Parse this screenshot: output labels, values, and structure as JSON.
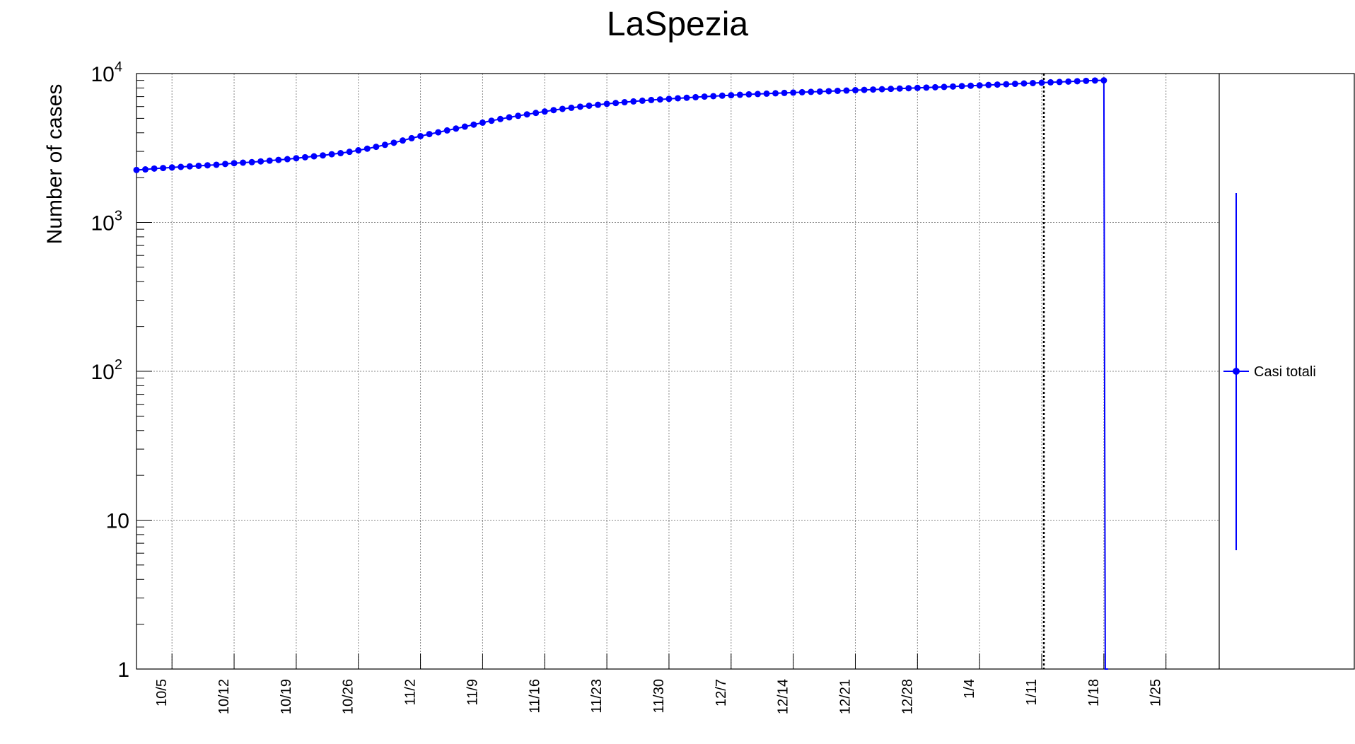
{
  "chart_data": {
    "type": "line",
    "title": "LaSpezia",
    "xlabel": "",
    "ylabel": "Number of cases",
    "y_scale": "log",
    "ylim": [
      1,
      10000
    ],
    "xlim": [
      "2020-10-01",
      "2021-01-31"
    ],
    "grid": true,
    "x_ticks": [
      "10/5",
      "10/12",
      "10/19",
      "10/26",
      "11/2",
      "11/9",
      "11/16",
      "11/23",
      "11/30",
      "12/7",
      "12/14",
      "12/21",
      "12/28",
      "1/4",
      "1/11",
      "1/18",
      "1/25"
    ],
    "y_ticks": [
      {
        "value": 1,
        "base": "1",
        "exp": ""
      },
      {
        "value": 10,
        "base": "10",
        "exp": ""
      },
      {
        "value": 100,
        "base": "10",
        "exp": "2"
      },
      {
        "value": 1000,
        "base": "10",
        "exp": "3"
      },
      {
        "value": 10000,
        "base": "10",
        "exp": "4"
      }
    ],
    "vertical_marker": "2021-01-11",
    "legend": {
      "placement": "right",
      "entries": [
        "Casi totali"
      ]
    },
    "colors": {
      "series": "#0000ff"
    },
    "series": [
      {
        "name": "Casi totali",
        "start_date": "2020-10-01",
        "values": [
          2250,
          2270,
          2300,
          2320,
          2340,
          2360,
          2380,
          2400,
          2420,
          2440,
          2470,
          2500,
          2520,
          2540,
          2570,
          2600,
          2630,
          2660,
          2700,
          2740,
          2780,
          2820,
          2870,
          2920,
          2980,
          3050,
          3130,
          3220,
          3320,
          3430,
          3550,
          3680,
          3800,
          3920,
          4030,
          4150,
          4270,
          4400,
          4540,
          4680,
          4820,
          4950,
          5080,
          5200,
          5320,
          5440,
          5560,
          5680,
          5790,
          5890,
          5990,
          6080,
          6170,
          6260,
          6340,
          6420,
          6500,
          6570,
          6640,
          6700,
          6760,
          6820,
          6880,
          6940,
          7000,
          7050,
          7100,
          7150,
          7200,
          7250,
          7290,
          7330,
          7370,
          7410,
          7450,
          7490,
          7530,
          7570,
          7610,
          7650,
          7690,
          7730,
          7770,
          7810,
          7850,
          7890,
          7930,
          7970,
          8010,
          8050,
          8090,
          8130,
          8180,
          8230,
          8280,
          8330,
          8380,
          8430,
          8480,
          8530,
          8580,
          8630,
          8680,
          8730,
          8780,
          8830,
          8880,
          8930,
          8980,
          9000
        ]
      }
    ]
  }
}
